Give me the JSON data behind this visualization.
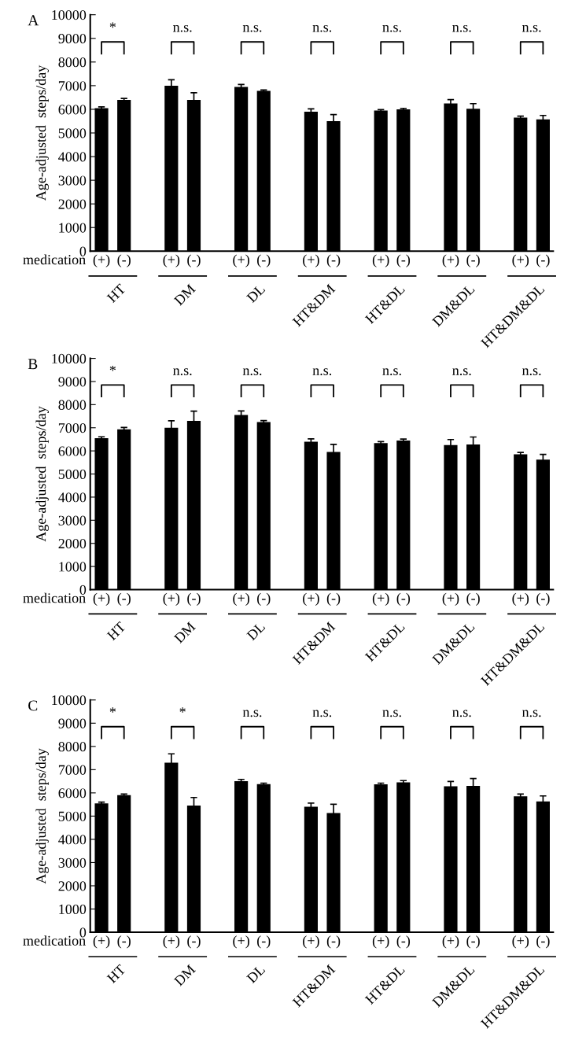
{
  "chart_data": [
    {
      "type": "bar",
      "title": "A",
      "ylabel": "Age-adjusted  steps/day",
      "categories": [
        "(+)",
        "(-)",
        "(+)",
        "(-)",
        "(+)",
        "(-)",
        "(+)",
        "(-)",
        "(+)",
        "(-)",
        "(+)",
        "(-)",
        "(+)",
        "(-)"
      ],
      "series": [
        {
          "color": "#000000",
          "values": [
            6050,
            6400,
            7000,
            6400,
            6950,
            6780,
            5900,
            5500,
            5950,
            6000,
            6250,
            6020,
            5650,
            5570
          ],
          "errors": [
            50,
            60,
            250,
            300,
            100,
            40,
            120,
            280,
            40,
            40,
            160,
            220,
            60,
            170
          ]
        }
      ],
      "ylim": [
        0,
        10000
      ],
      "yticks": [
        0,
        1000,
        2000,
        3000,
        4000,
        5000,
        6000,
        7000,
        8000,
        9000,
        10000
      ],
      "grid": false,
      "legend": false,
      "annotations": [
        "medication",
        "HT",
        "DM",
        "DL",
        "HT&DM",
        "HT&DL",
        "DM&DL",
        "HT&DM&DL",
        "*",
        "n.s.",
        "n.s.",
        "n.s.",
        "n.s.",
        "n.s.",
        "n.s."
      ]
    },
    {
      "type": "bar",
      "title": "B",
      "ylabel": "Age-adjusted  steps/day",
      "categories": [
        "(+)",
        "(-)",
        "(+)",
        "(-)",
        "(+)",
        "(-)",
        "(+)",
        "(-)",
        "(+)",
        "(-)",
        "(+)",
        "(-)",
        "(+)",
        "(-)"
      ],
      "series": [
        {
          "color": "#000000",
          "values": [
            6550,
            6930,
            7000,
            7300,
            7550,
            7250,
            6400,
            5950,
            6340,
            6450,
            6250,
            6280,
            5850,
            5620
          ],
          "errors": [
            60,
            80,
            300,
            420,
            180,
            60,
            120,
            330,
            60,
            60,
            240,
            320,
            80,
            230
          ]
        }
      ],
      "ylim": [
        0,
        10000
      ],
      "yticks": [
        0,
        1000,
        2000,
        3000,
        4000,
        5000,
        6000,
        7000,
        8000,
        9000,
        10000
      ],
      "grid": false,
      "legend": false,
      "annotations": [
        "medication",
        "HT",
        "DM",
        "DL",
        "HT&DM",
        "HT&DL",
        "DM&DL",
        "HT&DM&DL",
        "*",
        "n.s.",
        "n.s.",
        "n.s.",
        "n.s.",
        "n.s.",
        "n.s."
      ]
    },
    {
      "type": "bar",
      "title": "C",
      "ylabel": "Age-adjusted  steps/day",
      "categories": [
        "(+)",
        "(-)",
        "(+)",
        "(-)",
        "(+)",
        "(-)",
        "(+)",
        "(-)",
        "(+)",
        "(-)",
        "(+)",
        "(-)",
        "(+)",
        "(-)"
      ],
      "series": [
        {
          "color": "#000000",
          "values": [
            5550,
            5900,
            7300,
            5450,
            6500,
            6380,
            5400,
            5130,
            6370,
            6450,
            6280,
            6300,
            5850,
            5630
          ],
          "errors": [
            50,
            50,
            380,
            350,
            80,
            40,
            160,
            380,
            50,
            80,
            210,
            320,
            100,
            240
          ]
        }
      ],
      "ylim": [
        0,
        10000
      ],
      "yticks": [
        0,
        1000,
        2000,
        3000,
        4000,
        5000,
        6000,
        7000,
        8000,
        9000,
        10000
      ],
      "grid": false,
      "legend": false,
      "annotations": [
        "medication",
        "HT",
        "DM",
        "DL",
        "HT&DM",
        "HT&DL",
        "DM&DL",
        "HT&DM&DL",
        "*",
        "*",
        "n.s.",
        "n.s.",
        "n.s.",
        "n.s.",
        "n.s."
      ]
    }
  ]
}
